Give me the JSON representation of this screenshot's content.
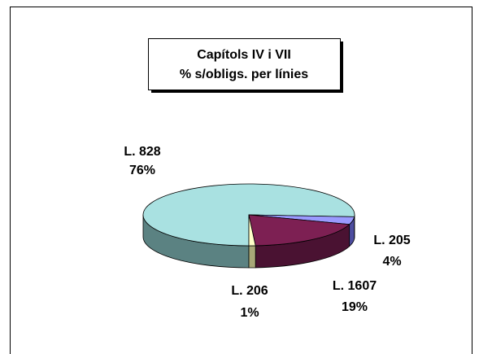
{
  "chart_data": {
    "type": "pie",
    "title": "Capítols IV i VII",
    "subtitle": "% s/obligs. per línies",
    "categories": [
      "L. 828",
      "L. 205",
      "L. 1607",
      "L. 206"
    ],
    "values": [
      76,
      4,
      19,
      1
    ],
    "value_labels": [
      "76%",
      "4%",
      "19%",
      "1%"
    ],
    "colors": [
      "#a9e1e1",
      "#9a9aff",
      "#7d2053",
      "#ffffc8"
    ],
    "side_colors": [
      "#5b8282",
      "#4d4da0",
      "#4a1232",
      "#a8a878"
    ]
  }
}
